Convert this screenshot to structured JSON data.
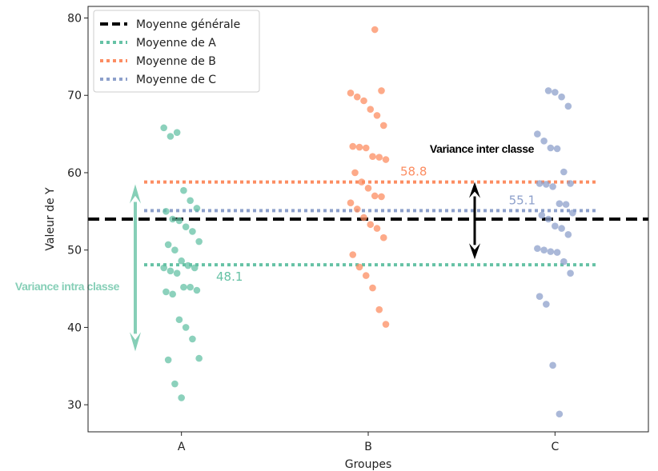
{
  "chart_data": {
    "type": "scatter",
    "xlabel": "Groupes",
    "ylabel": "Valeur de Y",
    "categories": [
      "A",
      "B",
      "C"
    ],
    "ylim": [
      26.5,
      81.5
    ],
    "yticks": [
      30,
      40,
      50,
      60,
      70,
      80
    ],
    "grid": false,
    "legend_position": "top-left",
    "series": [
      {
        "name": "A",
        "color": "#66c2a5",
        "values": [
          65.8,
          64.7,
          65.2,
          57.7,
          56.4,
          55.4,
          55.0,
          54.0,
          53.8,
          53.0,
          52.4,
          51.1,
          50.7,
          50.0,
          48.6,
          48.0,
          47.7,
          47.7,
          47.3,
          47.0,
          45.2,
          45.2,
          44.8,
          44.6,
          44.3,
          41.0,
          40.0,
          38.5,
          36.0,
          35.8,
          32.7,
          30.9
        ]
      },
      {
        "name": "B",
        "color": "#fc8d62",
        "values": [
          78.5,
          70.6,
          70.3,
          69.8,
          69.3,
          68.2,
          67.4,
          66.1,
          63.4,
          63.3,
          63.2,
          62.1,
          62.0,
          61.7,
          60.0,
          58.8,
          58.0,
          57.0,
          56.9,
          56.1,
          55.3,
          54.2,
          53.3,
          52.8,
          51.6,
          49.4,
          47.8,
          46.7,
          45.1,
          42.3,
          40.4
        ]
      },
      {
        "name": "C",
        "color": "#8da0cb",
        "values": [
          70.6,
          70.4,
          69.8,
          68.6,
          65.0,
          64.1,
          63.2,
          63.1,
          60.1,
          58.6,
          58.6,
          58.5,
          58.2,
          56.0,
          55.9,
          54.8,
          54.5,
          54.0,
          53.1,
          52.8,
          52.0,
          50.2,
          50.0,
          49.8,
          49.7,
          48.5,
          47.0,
          44.0,
          43.0,
          35.1,
          28.8
        ]
      }
    ],
    "means": {
      "overall": {
        "label": "Moyenne générale",
        "value": 54.0,
        "color": "#000000"
      },
      "groups": [
        {
          "label": "Moyenne de A",
          "value": 48.1,
          "value_label": "48.1",
          "color": "#66c2a5"
        },
        {
          "label": "Moyenne de B",
          "value": 58.8,
          "value_label": "58.8",
          "color": "#fc8d62"
        },
        {
          "label": "Moyenne de C",
          "value": 55.1,
          "value_label": "55.1",
          "color": "#8da0cb"
        }
      ]
    },
    "annotations": {
      "inter": {
        "text": "Variance inter classe",
        "from": 48.8,
        "to": 58.8,
        "color": "#000000"
      },
      "intra": {
        "text": "Variance intra classe",
        "from": 36.9,
        "to": 58.5,
        "color": "#86cfb7"
      }
    }
  }
}
